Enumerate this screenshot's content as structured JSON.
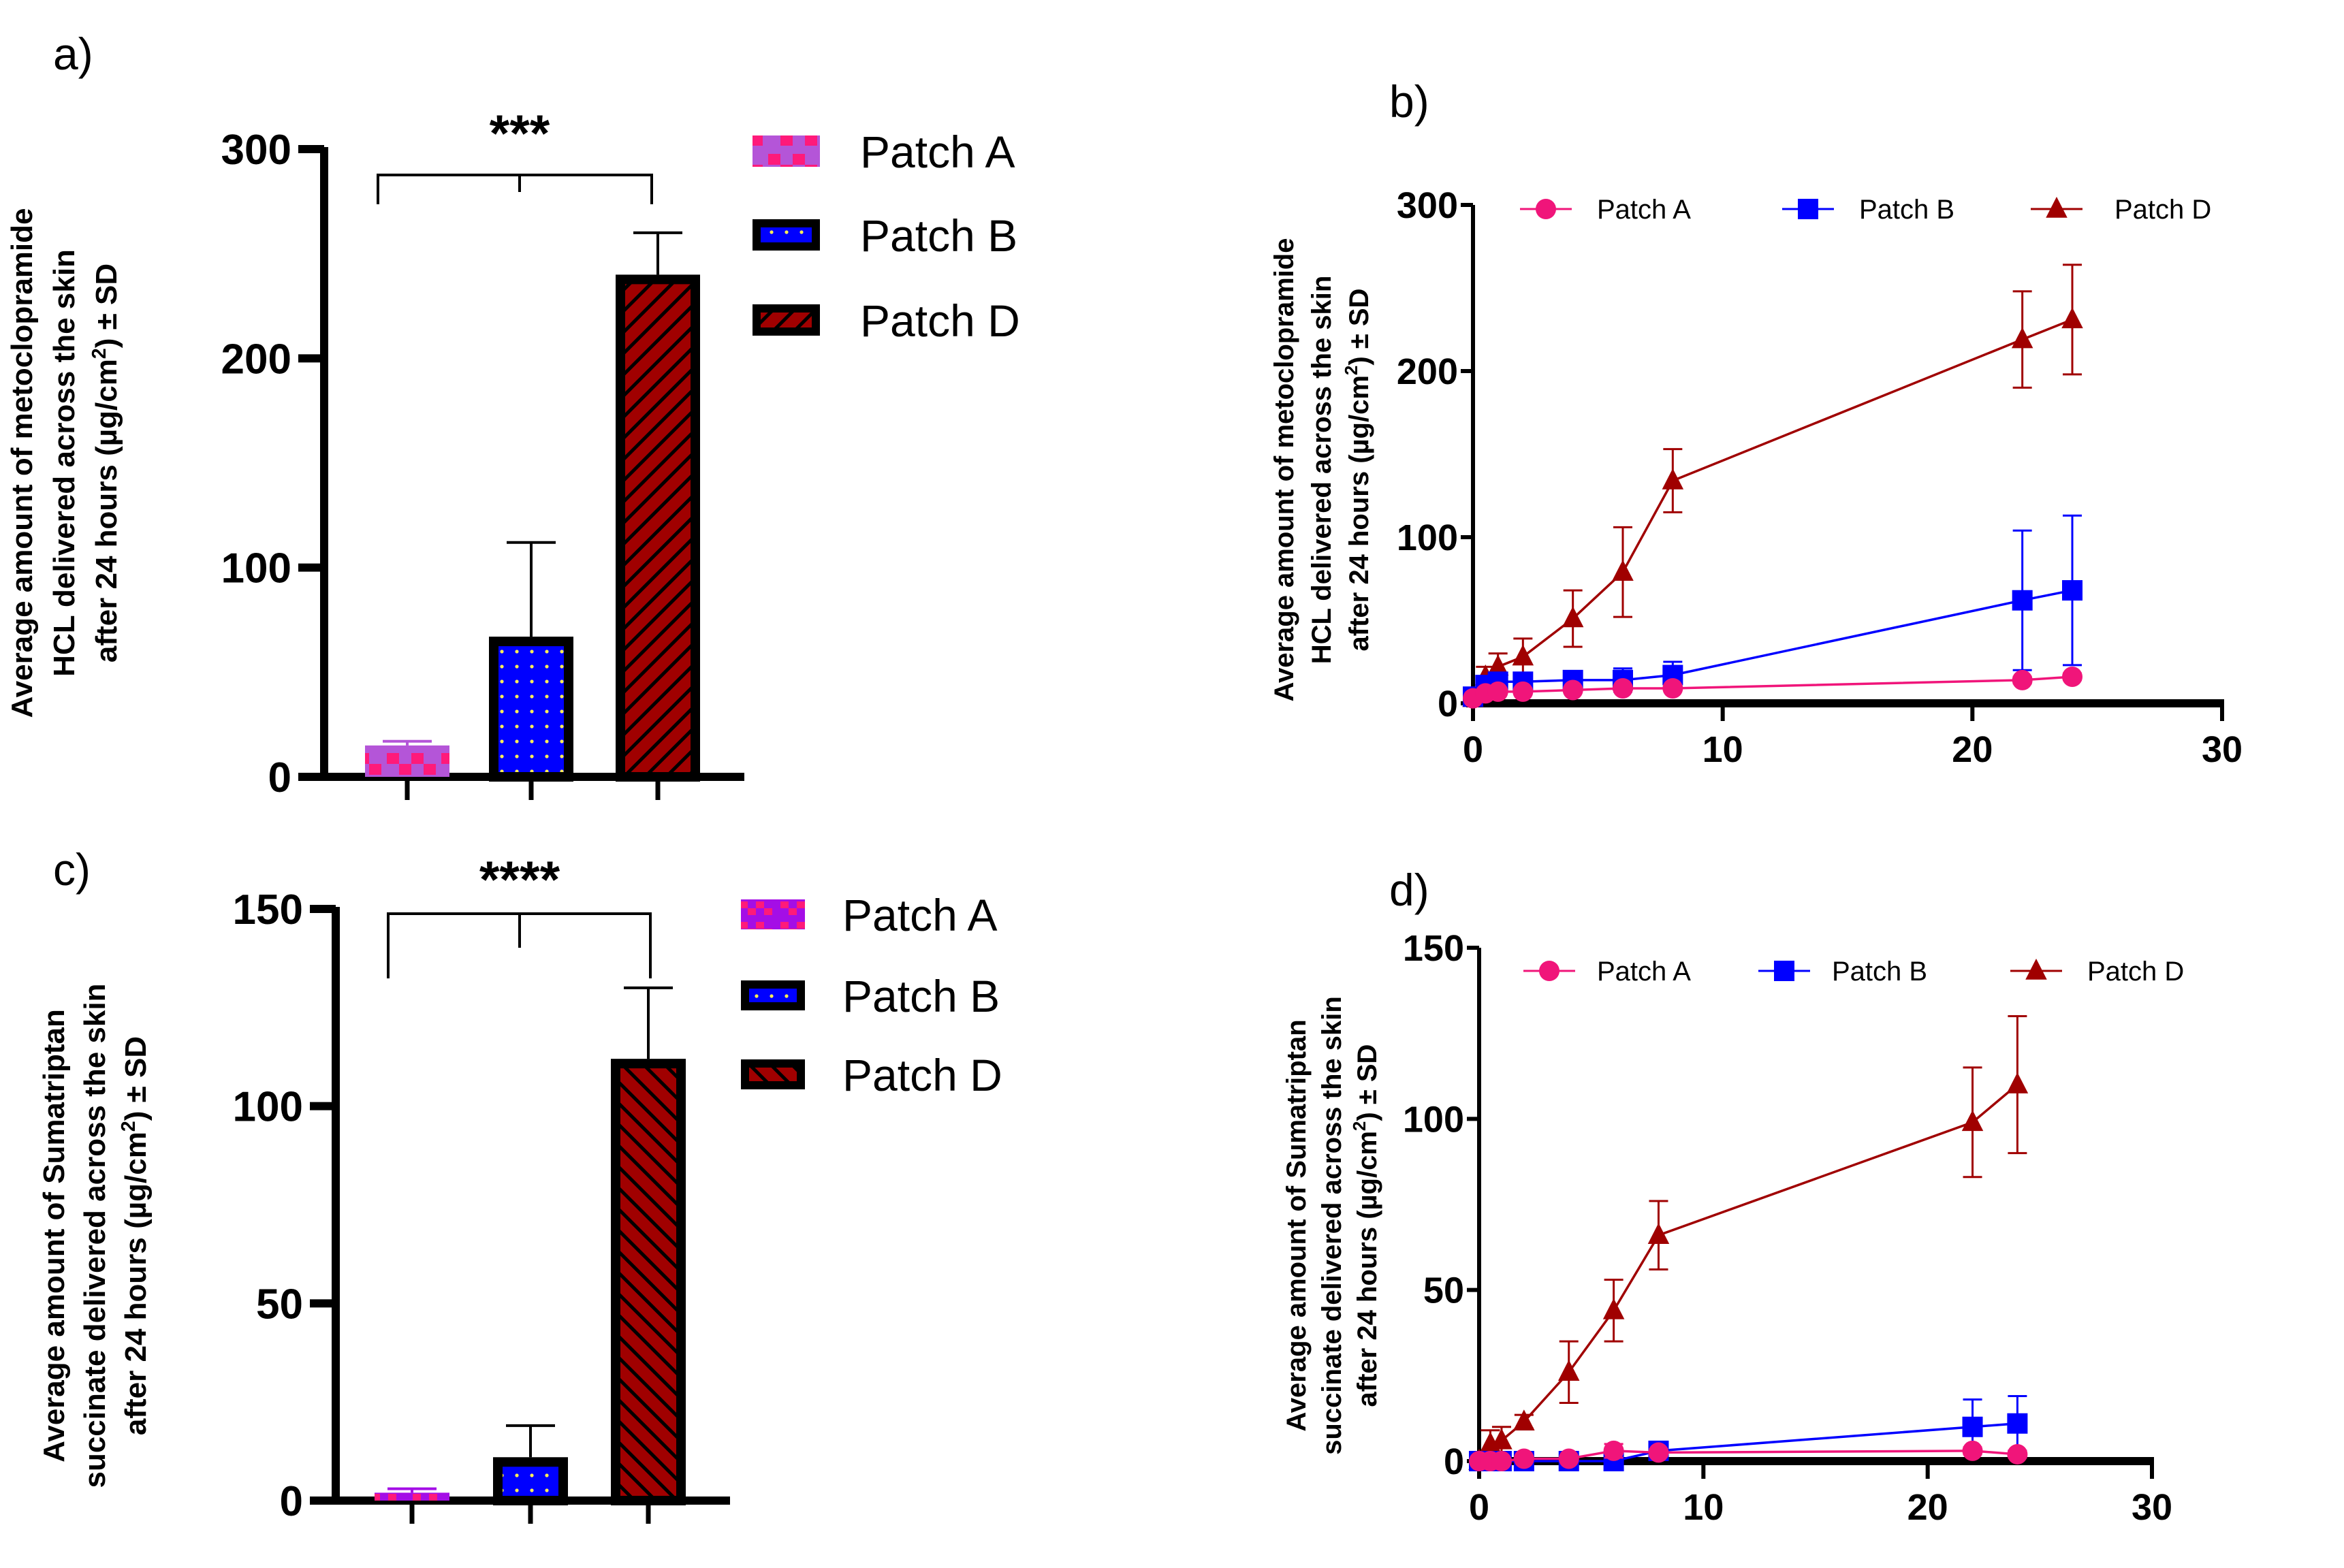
{
  "figure": {
    "panel_labels": [
      "a)",
      "b)",
      "c)",
      "d)"
    ]
  },
  "colors": {
    "patch_a_panel_a": "#b455d8",
    "patch_a_panel_c": "#a40ee6",
    "patch_a_accent": "#ff1a7a",
    "patch_a_line": "#f0157a",
    "patch_b": "#0000ff",
    "patch_b_dot": "#ffee55",
    "patch_d": "#a00000",
    "patch_d_line": "#b01818",
    "axis": "#000000"
  },
  "chart_data": [
    {
      "id": "a",
      "type": "bar",
      "title": "",
      "xlabel": "",
      "ylabel": "Average amount of metoclopramide HCL delivered across the skin after 24 hours (µg/cm²) ± SD",
      "ylabel_lines": [
        "Average amount of metoclopramide",
        "HCL delivered across the skin",
        "after 24 hours (µg/cm",
        "2",
        ") ± SD"
      ],
      "categories": [
        "Patch A",
        "Patch B",
        "Patch D"
      ],
      "values": [
        15,
        67,
        240
      ],
      "errors": [
        2,
        45,
        20
      ],
      "ylim": [
        0,
        300
      ],
      "yticks": [
        0,
        100,
        200,
        300
      ],
      "significance": "***",
      "legend": [
        "Patch A",
        "Patch B",
        "Patch D"
      ],
      "legend_position": "right",
      "grid": false
    },
    {
      "id": "b",
      "type": "line",
      "title": "",
      "xlabel": "",
      "ylabel": "Average amount of metoclopramide HCL delivered across the skin after 24 hours (µg/cm²) ± SD",
      "ylabel_lines": [
        "Average amount of metoclopramide",
        "HCL delivered across the skin",
        "after 24 hours (µg/cm",
        "2",
        ") ± SD"
      ],
      "x": [
        0,
        0.5,
        1,
        2,
        4,
        6,
        8,
        22,
        24
      ],
      "series": [
        {
          "name": "Patch A",
          "marker": "circle",
          "values": [
            3,
            6,
            7,
            7,
            8,
            9,
            9,
            14,
            16
          ],
          "errors": [
            1,
            1,
            1,
            1,
            1,
            1,
            1,
            2,
            2
          ]
        },
        {
          "name": "Patch B",
          "marker": "square",
          "values": [
            4,
            11,
            13,
            13,
            14,
            14,
            17,
            62,
            68
          ],
          "errors": [
            2,
            3,
            3,
            5,
            4,
            7,
            8,
            42,
            45
          ]
        },
        {
          "name": "Patch D",
          "marker": "triangle",
          "values": [
            3,
            16,
            22,
            28,
            51,
            79,
            134,
            219,
            231
          ],
          "errors": [
            2,
            6,
            8,
            11,
            17,
            27,
            19,
            29,
            33
          ]
        }
      ],
      "xlim": [
        0,
        30
      ],
      "xticks": [
        0,
        10,
        20,
        30
      ],
      "ylim": [
        0,
        300
      ],
      "yticks": [
        0,
        100,
        200,
        300
      ],
      "legend_position": "top",
      "grid": false
    },
    {
      "id": "c",
      "type": "bar",
      "title": "",
      "xlabel": "",
      "ylabel": "Average amount of Sumatriptan succinate delivered across the skin after 24 hours (µg/cm²) ± SD",
      "ylabel_lines": [
        "Average amount of Sumatriptan",
        "succinate  delivered across the skin",
        "after 24 hours (µg/cm",
        "2",
        ") ± SD"
      ],
      "categories": [
        "Patch A",
        "Patch B",
        "Patch D"
      ],
      "values": [
        2,
        11,
        112
      ],
      "errors": [
        1,
        8,
        18
      ],
      "ylim": [
        0,
        150
      ],
      "yticks": [
        0,
        50,
        100,
        150
      ],
      "significance": "****",
      "legend": [
        "Patch A",
        "Patch B",
        "Patch D"
      ],
      "legend_position": "right",
      "grid": false
    },
    {
      "id": "d",
      "type": "line",
      "title": "",
      "xlabel": "",
      "ylabel": "Average amount of Sumatriptan succinate delivered across the skin after 24 hours (µg/cm²) ± SD",
      "ylabel_lines": [
        "Average amount of Sumatriptan",
        "succinate  delivered across the skin",
        "after 24 hours (µg/cm",
        "2",
        ") ± SD"
      ],
      "x": [
        0,
        0.5,
        1,
        2,
        4,
        6,
        8,
        22,
        24
      ],
      "series": [
        {
          "name": "Patch A",
          "marker": "circle",
          "values": [
            0,
            0,
            0,
            0.7,
            0.7,
            3,
            2.5,
            3,
            2
          ],
          "errors": [
            0.5,
            0.5,
            0.5,
            0.5,
            0.5,
            2,
            1,
            1,
            1
          ]
        },
        {
          "name": "Patch B",
          "marker": "square",
          "values": [
            0,
            0,
            0,
            0,
            0,
            0,
            3,
            10,
            11
          ],
          "errors": [
            0.5,
            0.5,
            0.5,
            0.5,
            0.5,
            1,
            1,
            8,
            8
          ]
        },
        {
          "name": "Patch D",
          "marker": "triangle",
          "values": [
            0,
            5,
            6,
            11.5,
            26,
            44,
            66,
            99,
            110
          ],
          "errors": [
            1,
            4,
            4,
            2,
            9,
            9,
            10,
            16,
            20
          ]
        }
      ],
      "xlim": [
        0,
        30
      ],
      "xticks": [
        0,
        10,
        20,
        30
      ],
      "ylim": [
        0,
        150
      ],
      "yticks": [
        0,
        50,
        100,
        150
      ],
      "legend_position": "top",
      "grid": false
    }
  ]
}
